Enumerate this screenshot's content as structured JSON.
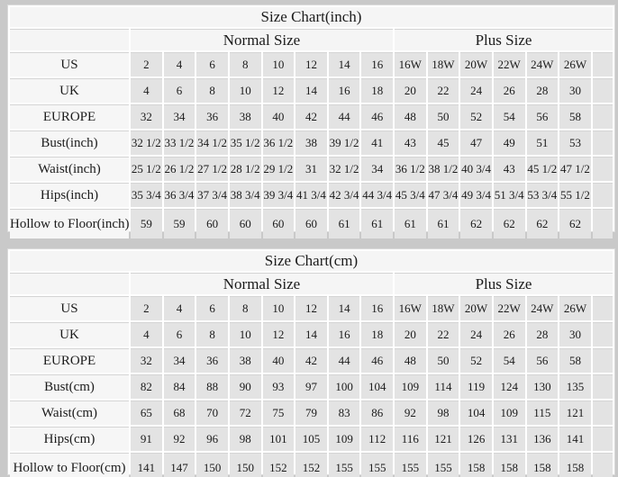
{
  "page": {
    "background": "#c9c9c9"
  },
  "colors": {
    "panel_bg": "#ffffff",
    "header_cell_bg": "#f5f5f5",
    "label_cell_bg": "#f6f6f6",
    "data_cell_bg": "#e3e3e3",
    "grid_line": "#d4d4d4",
    "text": "#1b1b1b"
  },
  "tables": [
    {
      "title": "Size Chart(inch)",
      "normal_header": "Normal Size",
      "plus_header": "Plus Size",
      "rows": [
        {
          "label": "US",
          "normal": [
            "2",
            "4",
            "6",
            "8",
            "10",
            "12",
            "14",
            "16"
          ],
          "plus": [
            "16W",
            "18W",
            "20W",
            "22W",
            "24W",
            "26W"
          ]
        },
        {
          "label": "UK",
          "normal": [
            "4",
            "6",
            "8",
            "10",
            "12",
            "14",
            "16",
            "18"
          ],
          "plus": [
            "20",
            "22",
            "24",
            "26",
            "28",
            "30"
          ]
        },
        {
          "label": "EUROPE",
          "normal": [
            "32",
            "34",
            "36",
            "38",
            "40",
            "42",
            "44",
            "46"
          ],
          "plus": [
            "48",
            "50",
            "52",
            "54",
            "56",
            "58"
          ]
        },
        {
          "label": "Bust(inch)",
          "normal": [
            "32 1/2",
            "33 1/2",
            "34 1/2",
            "35 1/2",
            "36 1/2",
            "38",
            "39 1/2",
            "41"
          ],
          "plus": [
            "43",
            "45",
            "47",
            "49",
            "51",
            "53"
          ]
        },
        {
          "label": "Waist(inch)",
          "normal": [
            "25 1/2",
            "26 1/2",
            "27 1/2",
            "28 1/2",
            "29 1/2",
            "31",
            "32 1/2",
            "34"
          ],
          "plus": [
            "36 1/2",
            "38 1/2",
            "40 3/4",
            "43",
            "45 1/2",
            "47 1/2"
          ]
        },
        {
          "label": "Hips(inch)",
          "normal": [
            "35 3/4",
            "36 3/4",
            "37 3/4",
            "38 3/4",
            "39 3/4",
            "41 3/4",
            "42 3/4",
            "44 3/4"
          ],
          "plus": [
            "45 3/4",
            "47 3/4",
            "49 3/4",
            "51 3/4",
            "53 3/4",
            "55 1/2"
          ]
        },
        {
          "label": "Hollow to Floor(inch)",
          "normal": [
            "59",
            "59",
            "60",
            "60",
            "60",
            "60",
            "61",
            "61"
          ],
          "plus": [
            "61",
            "61",
            "62",
            "62",
            "62",
            "62"
          ]
        }
      ]
    },
    {
      "title": "Size Chart(cm)",
      "normal_header": "Normal Size",
      "plus_header": "Plus Size",
      "rows": [
        {
          "label": "US",
          "normal": [
            "2",
            "4",
            "6",
            "8",
            "10",
            "12",
            "14",
            "16"
          ],
          "plus": [
            "16W",
            "18W",
            "20W",
            "22W",
            "24W",
            "26W"
          ]
        },
        {
          "label": "UK",
          "normal": [
            "4",
            "6",
            "8",
            "10",
            "12",
            "14",
            "16",
            "18"
          ],
          "plus": [
            "20",
            "22",
            "24",
            "26",
            "28",
            "30"
          ]
        },
        {
          "label": "EUROPE",
          "normal": [
            "32",
            "34",
            "36",
            "38",
            "40",
            "42",
            "44",
            "46"
          ],
          "plus": [
            "48",
            "50",
            "52",
            "54",
            "56",
            "58"
          ]
        },
        {
          "label": "Bust(cm)",
          "normal": [
            "82",
            "84",
            "88",
            "90",
            "93",
            "97",
            "100",
            "104"
          ],
          "plus": [
            "109",
            "114",
            "119",
            "124",
            "130",
            "135"
          ]
        },
        {
          "label": "Waist(cm)",
          "normal": [
            "65",
            "68",
            "70",
            "72",
            "75",
            "79",
            "83",
            "86"
          ],
          "plus": [
            "92",
            "98",
            "104",
            "109",
            "115",
            "121"
          ]
        },
        {
          "label": "Hips(cm)",
          "normal": [
            "91",
            "92",
            "96",
            "98",
            "101",
            "105",
            "109",
            "112"
          ],
          "plus": [
            "116",
            "121",
            "126",
            "131",
            "136",
            "141"
          ]
        },
        {
          "label": "Hollow to Floor(cm)",
          "normal": [
            "141",
            "147",
            "150",
            "150",
            "152",
            "152",
            "155",
            "155"
          ],
          "plus": [
            "155",
            "155",
            "158",
            "158",
            "158",
            "158"
          ]
        }
      ]
    }
  ]
}
